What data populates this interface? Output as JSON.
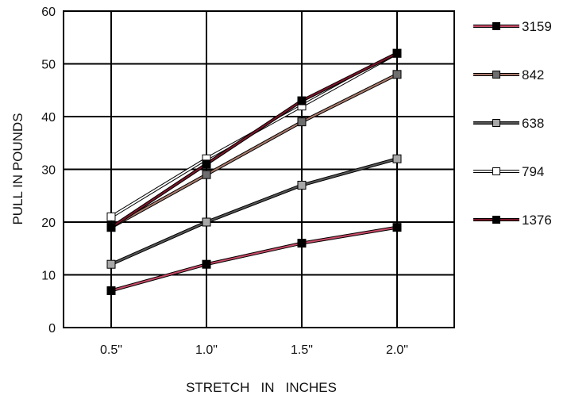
{
  "chart_data": {
    "type": "line",
    "xlabel": "STRETCH   IN   INCHES",
    "ylabel": "PULL IN POUNDS",
    "categories": [
      "0.5\"",
      "1.0\"",
      "1.5\"",
      "2.0\""
    ],
    "ylim": [
      0,
      60
    ],
    "yticks": [
      "0",
      "10",
      "20",
      "30",
      "40",
      "50",
      "60"
    ],
    "grid": true,
    "legend_placement": "right",
    "series": [
      {
        "name": "3159",
        "values": [
          7,
          12,
          16,
          19
        ],
        "line_color": "#c84a66",
        "marker_color": "#000000"
      },
      {
        "name": "842",
        "values": [
          19,
          29,
          39,
          48
        ],
        "line_color": "#a97a6c",
        "marker_color": "#6e6e6e"
      },
      {
        "name": "638",
        "values": [
          12,
          20,
          27,
          32
        ],
        "line_color": "#555555",
        "marker_color": "#a8a8a8"
      },
      {
        "name": "794",
        "values": [
          21,
          32,
          42,
          52
        ],
        "line_color": "#ffffff",
        "marker_color": "#ffffff"
      },
      {
        "name": "1376",
        "values": [
          19,
          31,
          43,
          52
        ],
        "line_color": "#7a1528",
        "marker_color": "#000000"
      }
    ]
  }
}
